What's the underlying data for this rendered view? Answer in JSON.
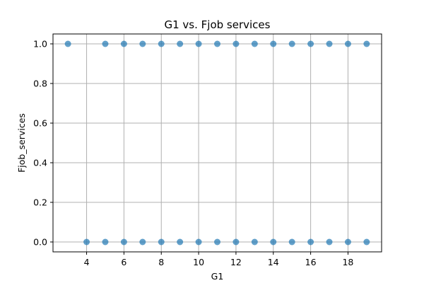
{
  "chart_data": {
    "type": "scatter",
    "title": "G1 vs. Fjob services",
    "xlabel": "G1",
    "ylabel": "Fjob_services",
    "xlim": [
      2.2,
      19.8
    ],
    "ylim": [
      -0.05,
      1.05
    ],
    "xticks": [
      4,
      6,
      8,
      10,
      12,
      14,
      16,
      18
    ],
    "yticks": [
      0.0,
      0.2,
      0.4,
      0.6,
      0.8,
      1.0
    ],
    "xtick_labels": [
      "4",
      "6",
      "8",
      "10",
      "12",
      "14",
      "16",
      "18"
    ],
    "ytick_labels": [
      "0.0",
      "0.2",
      "0.4",
      "0.6",
      "0.8",
      "1.0"
    ],
    "grid": true,
    "marker_color": "#1f77b4",
    "marker_alpha": 0.7,
    "points": [
      {
        "x": 3,
        "y": 1
      },
      {
        "x": 5,
        "y": 1
      },
      {
        "x": 6,
        "y": 1
      },
      {
        "x": 7,
        "y": 1
      },
      {
        "x": 8,
        "y": 1
      },
      {
        "x": 9,
        "y": 1
      },
      {
        "x": 10,
        "y": 1
      },
      {
        "x": 11,
        "y": 1
      },
      {
        "x": 12,
        "y": 1
      },
      {
        "x": 13,
        "y": 1
      },
      {
        "x": 14,
        "y": 1
      },
      {
        "x": 15,
        "y": 1
      },
      {
        "x": 16,
        "y": 1
      },
      {
        "x": 17,
        "y": 1
      },
      {
        "x": 18,
        "y": 1
      },
      {
        "x": 19,
        "y": 1
      },
      {
        "x": 4,
        "y": 0
      },
      {
        "x": 5,
        "y": 0
      },
      {
        "x": 6,
        "y": 0
      },
      {
        "x": 7,
        "y": 0
      },
      {
        "x": 8,
        "y": 0
      },
      {
        "x": 9,
        "y": 0
      },
      {
        "x": 10,
        "y": 0
      },
      {
        "x": 11,
        "y": 0
      },
      {
        "x": 12,
        "y": 0
      },
      {
        "x": 13,
        "y": 0
      },
      {
        "x": 14,
        "y": 0
      },
      {
        "x": 15,
        "y": 0
      },
      {
        "x": 16,
        "y": 0
      },
      {
        "x": 17,
        "y": 0
      },
      {
        "x": 18,
        "y": 0
      },
      {
        "x": 19,
        "y": 0
      }
    ]
  }
}
